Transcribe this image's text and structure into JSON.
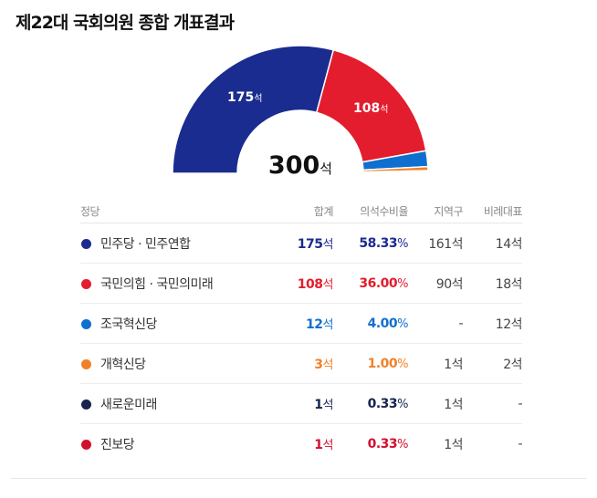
{
  "title": "제22대 국회의원 종합 개표결과",
  "unit_seat": "석",
  "total_seats": 300,
  "columns": {
    "party": "정당",
    "total": "합계",
    "ratio": "의석수비율",
    "district": "지역구",
    "proportional": "비례대표"
  },
  "parties": [
    {
      "name": "민주당",
      "name2": "민주연합",
      "color": "#1a2c8f",
      "total": 175,
      "ratio": "58.33",
      "district": "161석",
      "proportional": "14석"
    },
    {
      "name": "국민의힘",
      "name2": "국민의미래",
      "color": "#e31d2d",
      "total": 108,
      "ratio": "36.00",
      "district": "90석",
      "proportional": "18석"
    },
    {
      "name": "조국혁신당",
      "name2": "",
      "color": "#0f6fcf",
      "total": 12,
      "ratio": "4.00",
      "district": "-",
      "proportional": "12석"
    },
    {
      "name": "개혁신당",
      "name2": "",
      "color": "#f0812a",
      "total": 3,
      "ratio": "1.00",
      "district": "1석",
      "proportional": "2석"
    },
    {
      "name": "새로운미래",
      "name2": "",
      "color": "#16244e",
      "total": 1,
      "ratio": "0.33",
      "district": "1석",
      "proportional": "-"
    },
    {
      "name": "진보당",
      "name2": "",
      "color": "#d1102d",
      "total": 1,
      "ratio": "0.33",
      "district": "1석",
      "proportional": "-"
    }
  ],
  "chart_data": {
    "type": "pie",
    "title": "제22대 국회의원 종합 개표결과",
    "shape": "semicircle-donut",
    "total": 300,
    "categories": [
      "민주당 · 민주연합",
      "국민의힘 · 국민의미래",
      "조국혁신당",
      "개혁신당",
      "새로운미래",
      "진보당"
    ],
    "values": [
      175,
      108,
      12,
      3,
      1,
      1
    ],
    "colors": [
      "#1a2c8f",
      "#e31d2d",
      "#0f6fcf",
      "#f0812a",
      "#16244e",
      "#d1102d"
    ]
  }
}
